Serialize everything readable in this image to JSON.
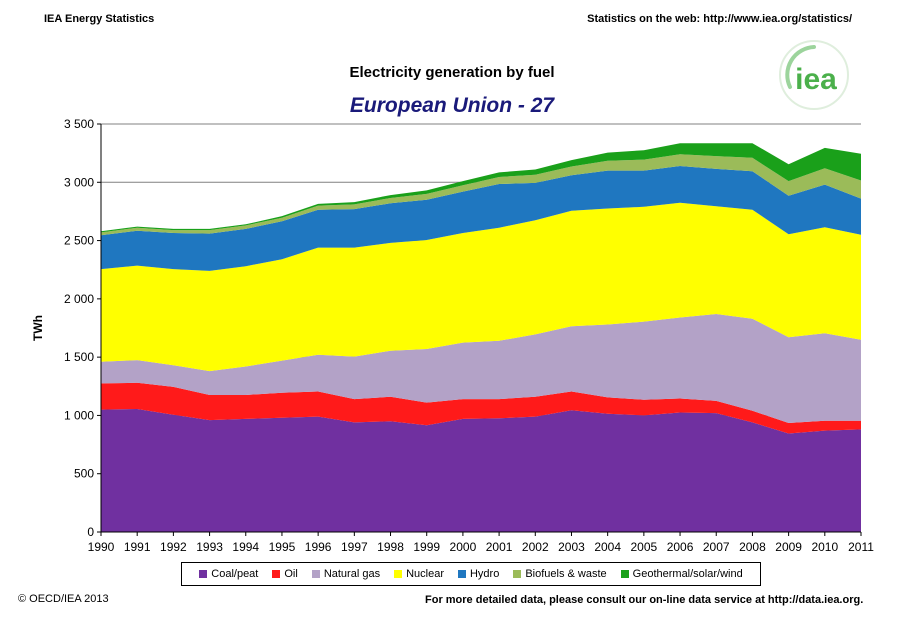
{
  "header": {
    "left": "IEA Energy Statistics",
    "right": "Statistics on the web: http://www.iea.org/statistics/"
  },
  "logo": {
    "text": "iea",
    "color": "#4bb04b"
  },
  "footer": {
    "copyright": "© OECD/IEA 2013",
    "note": "For more detailed data, please consult our on-line data service at http://data.iea.org."
  },
  "chart_data": {
    "type": "area",
    "stacked": true,
    "title": "Electricity generation by fuel",
    "subtitle": "European Union - 27",
    "ylabel": "TWh",
    "xlabel": "",
    "ylim": [
      0,
      3500
    ],
    "yticks": [
      0,
      500,
      1000,
      1500,
      2000,
      2500,
      3000,
      3500
    ],
    "ytick_labels": [
      "0",
      "500",
      "1 000",
      "1 500",
      "2 000",
      "2 500",
      "3 000",
      "3 500"
    ],
    "grid": "horizontal",
    "legend_position": "bottom",
    "x": [
      "1990",
      "1991",
      "1992",
      "1993",
      "1994",
      "1995",
      "1996",
      "1997",
      "1998",
      "1999",
      "2000",
      "2001",
      "2002",
      "2003",
      "2004",
      "2005",
      "2006",
      "2007",
      "2008",
      "2009",
      "2010",
      "2011"
    ],
    "series": [
      {
        "name": "Coal/peat",
        "color": "#7030a0",
        "values": [
          1050,
          1055,
          1005,
          960,
          970,
          980,
          990,
          940,
          950,
          915,
          970,
          975,
          990,
          1045,
          1015,
          1000,
          1025,
          1020,
          940,
          845,
          870,
          880
        ]
      },
      {
        "name": "Oil",
        "color": "#ff1a1a",
        "values": [
          225,
          225,
          240,
          215,
          205,
          215,
          215,
          200,
          210,
          195,
          170,
          165,
          170,
          160,
          140,
          135,
          120,
          105,
          100,
          90,
          85,
          75
        ]
      },
      {
        "name": "Natural gas",
        "color": "#b3a2c7",
        "values": [
          185,
          195,
          185,
          205,
          245,
          275,
          315,
          365,
          395,
          460,
          485,
          500,
          535,
          560,
          625,
          670,
          695,
          745,
          790,
          735,
          750,
          695
        ]
      },
      {
        "name": "Nuclear",
        "color": "#ffff00",
        "values": [
          795,
          810,
          825,
          860,
          860,
          870,
          920,
          935,
          925,
          935,
          940,
          970,
          980,
          990,
          995,
          985,
          985,
          925,
          935,
          885,
          910,
          900
        ]
      },
      {
        "name": "Hydro",
        "color": "#1f77c0",
        "values": [
          290,
          300,
          310,
          320,
          320,
          325,
          325,
          330,
          340,
          345,
          355,
          375,
          320,
          305,
          325,
          310,
          315,
          320,
          330,
          330,
          365,
          310
        ]
      },
      {
        "name": "Biofuels & waste",
        "color": "#9bbb59",
        "values": [
          25,
          25,
          25,
          30,
          30,
          30,
          35,
          40,
          45,
          50,
          55,
          60,
          70,
          75,
          85,
          95,
          100,
          110,
          115,
          125,
          140,
          155
        ]
      },
      {
        "name": "Geothermal/solar/wind",
        "color": "#1aa01a",
        "values": [
          10,
          10,
          10,
          10,
          10,
          15,
          15,
          20,
          25,
          30,
          35,
          40,
          45,
          55,
          70,
          80,
          95,
          110,
          125,
          145,
          175,
          230
        ]
      }
    ]
  }
}
